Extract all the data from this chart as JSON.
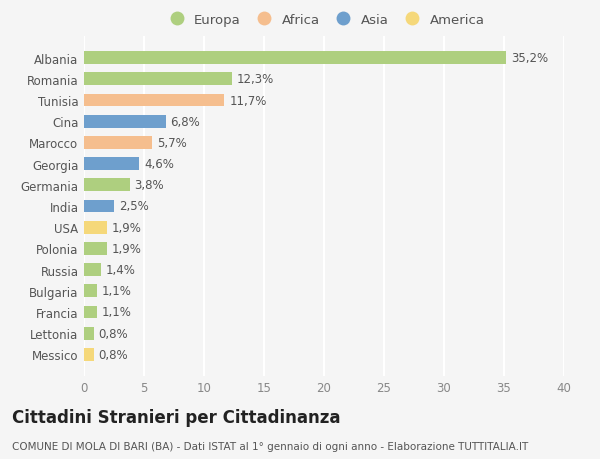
{
  "countries": [
    "Albania",
    "Romania",
    "Tunisia",
    "Cina",
    "Marocco",
    "Georgia",
    "Germania",
    "India",
    "USA",
    "Polonia",
    "Russia",
    "Bulgaria",
    "Francia",
    "Lettonia",
    "Messico"
  ],
  "values": [
    35.2,
    12.3,
    11.7,
    6.8,
    5.7,
    4.6,
    3.8,
    2.5,
    1.9,
    1.9,
    1.4,
    1.1,
    1.1,
    0.8,
    0.8
  ],
  "labels": [
    "35,2%",
    "12,3%",
    "11,7%",
    "6,8%",
    "5,7%",
    "4,6%",
    "3,8%",
    "2,5%",
    "1,9%",
    "1,9%",
    "1,4%",
    "1,1%",
    "1,1%",
    "0,8%",
    "0,8%"
  ],
  "colors": [
    "#aecf7f",
    "#aecf7f",
    "#f5be8e",
    "#6e9fcd",
    "#f5be8e",
    "#6e9fcd",
    "#aecf7f",
    "#6e9fcd",
    "#f5d87a",
    "#aecf7f",
    "#aecf7f",
    "#aecf7f",
    "#aecf7f",
    "#aecf7f",
    "#f5d87a"
  ],
  "legend_labels": [
    "Europa",
    "Africa",
    "Asia",
    "America"
  ],
  "legend_colors": [
    "#aecf7f",
    "#f5be8e",
    "#6e9fcd",
    "#f5d87a"
  ],
  "title": "Cittadini Stranieri per Cittadinanza",
  "subtitle": "COMUNE DI MOLA DI BARI (BA) - Dati ISTAT al 1° gennaio di ogni anno - Elaborazione TUTTITALIA.IT",
  "xlim": [
    0,
    40
  ],
  "xticks": [
    0,
    5,
    10,
    15,
    20,
    25,
    30,
    35,
    40
  ],
  "background_color": "#f5f5f5",
  "grid_color": "#ffffff",
  "bar_height": 0.6,
  "label_fontsize": 8.5,
  "tick_fontsize": 8.5,
  "title_fontsize": 12,
  "subtitle_fontsize": 7.5
}
